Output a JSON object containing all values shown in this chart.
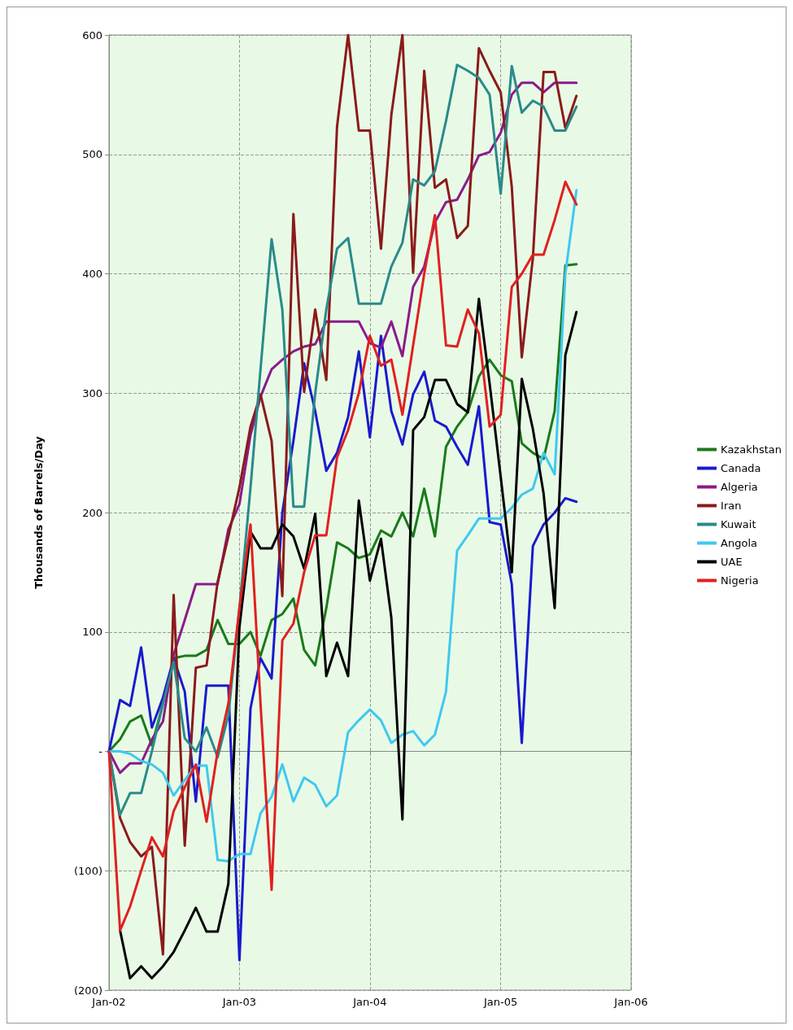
{
  "chart_data": {
    "type": "line",
    "ylabel": "Thousands of Barrels/Day",
    "x": [
      "2002-01",
      "2002-02",
      "2002-03",
      "2002-04",
      "2002-05",
      "2002-06",
      "2002-07",
      "2002-08",
      "2002-09",
      "2002-10",
      "2002-11",
      "2002-12",
      "2003-01",
      "2003-02",
      "2003-03",
      "2003-04",
      "2003-05",
      "2003-06",
      "2003-07",
      "2003-08",
      "2003-09",
      "2003-10",
      "2003-11",
      "2003-12",
      "2004-01",
      "2004-02",
      "2004-03",
      "2004-04",
      "2004-05",
      "2004-06",
      "2004-07",
      "2004-08",
      "2004-09",
      "2004-10",
      "2004-11",
      "2004-12",
      "2005-01",
      "2005-02",
      "2005-03",
      "2005-04",
      "2005-05",
      "2005-06",
      "2005-07",
      "2005-08"
    ],
    "series": [
      {
        "name": "Kazakhstan",
        "color": "#1a7a1a",
        "values": [
          0,
          10,
          25,
          30,
          5,
          40,
          78,
          80,
          80,
          85,
          110,
          90,
          90,
          100,
          80,
          110,
          115,
          128,
          85,
          72,
          120,
          175,
          170,
          162,
          165,
          185,
          180,
          200,
          180,
          220,
          180,
          255,
          272,
          284,
          314,
          328,
          315,
          310,
          258,
          250,
          245,
          285,
          407,
          408
        ]
      },
      {
        "name": "Canada",
        "color": "#1a1acc",
        "values": [
          0,
          43,
          38,
          87,
          20,
          45,
          78,
          50,
          -42,
          55,
          55,
          55,
          -175,
          36,
          78,
          61,
          200,
          260,
          325,
          285,
          235,
          250,
          280,
          335,
          263,
          348,
          285,
          257,
          299,
          318,
          277,
          272,
          255,
          240,
          289,
          192,
          190,
          140,
          7,
          172,
          190,
          200,
          212,
          209
        ]
      },
      {
        "name": "Algeria",
        "color": "#8b1a8b",
        "values": [
          0,
          -18,
          -10,
          -10,
          10,
          25,
          81,
          110,
          140,
          140,
          140,
          186,
          207,
          265,
          297,
          320,
          328,
          335,
          339,
          341,
          360,
          360,
          360,
          360,
          342,
          338,
          360,
          331,
          389,
          406,
          443,
          460,
          462,
          479,
          499,
          502,
          518,
          550,
          560,
          560,
          552,
          560,
          560,
          560
        ]
      },
      {
        "name": "Iran",
        "color": "#8b1a1a",
        "values": [
          0,
          -56,
          -76,
          -88,
          -80,
          -170,
          131,
          -79,
          70,
          72,
          142,
          180,
          221,
          272,
          299,
          260,
          130,
          450,
          301,
          370,
          311,
          523,
          600,
          520,
          520,
          421,
          533,
          600,
          401,
          570,
          472,
          479,
          430,
          440,
          589,
          570,
          552,
          473,
          330,
          413,
          569,
          569,
          522,
          549
        ]
      },
      {
        "name": "Kuwait",
        "color": "#2a8a8a",
        "values": [
          0,
          -53,
          -35,
          -35,
          0,
          40,
          75,
          11,
          0,
          20,
          -5,
          30,
          120,
          221,
          320,
          429,
          370,
          205,
          205,
          300,
          370,
          421,
          430,
          375,
          375,
          375,
          406,
          426,
          479,
          474,
          486,
          528,
          575,
          570,
          564,
          550,
          467,
          574,
          535,
          545,
          540,
          520,
          520,
          540
        ]
      },
      {
        "name": "Angola",
        "color": "#40c8f0",
        "values": [
          0,
          0,
          -2,
          -8,
          -11,
          -18,
          -37,
          -24,
          -12,
          -12,
          -91,
          -92,
          -86,
          -86,
          -52,
          -38,
          -11,
          -42,
          -22,
          -28,
          -46,
          -37,
          16,
          26,
          35,
          26,
          7,
          14,
          17,
          5,
          14,
          50,
          168,
          181,
          195,
          195,
          195,
          204,
          215,
          220,
          250,
          232,
          400,
          470
        ]
      },
      {
        "name": "UAE",
        "color": "#000000",
        "values": [
          null,
          -150,
          -190,
          -180,
          -190,
          -180,
          -168,
          -150,
          -131,
          -151,
          -151,
          -111,
          104,
          184,
          170,
          170,
          190,
          180,
          153,
          199,
          63,
          91,
          63,
          210,
          143,
          178,
          112,
          -57,
          269,
          280,
          311,
          311,
          291,
          284,
          379,
          308,
          230,
          150,
          312,
          270,
          216,
          120,
          332,
          368
        ]
      },
      {
        "name": "Nigeria",
        "color": "#e02020",
        "values": [
          0,
          -150,
          -130,
          -100,
          -72,
          -88,
          -50,
          -30,
          -11,
          -59,
          0,
          40,
          120,
          190,
          40,
          -116,
          93,
          107,
          150,
          181,
          181,
          246,
          269,
          300,
          348,
          323,
          328,
          282,
          340,
          400,
          449,
          340,
          339,
          370,
          350,
          272,
          282,
          389,
          400,
          416,
          416,
          445,
          477,
          458
        ]
      }
    ],
    "xlim": [
      "2002-01",
      "2006-01"
    ],
    "xticks": [
      {
        "value": "2002-01",
        "label": "Jan-02"
      },
      {
        "value": "2003-01",
        "label": "Jan-03"
      },
      {
        "value": "2004-01",
        "label": "Jan-04"
      },
      {
        "value": "2005-01",
        "label": "Jan-05"
      },
      {
        "value": "2006-01",
        "label": "Jan-06"
      }
    ],
    "ylim": [
      -200,
      600
    ],
    "yticks": [
      {
        "value": -200,
        "label": "(200)"
      },
      {
        "value": -100,
        "label": "(100)"
      },
      {
        "value": 0,
        "label": "-"
      },
      100,
      200,
      300,
      400,
      500,
      600
    ],
    "grid": true,
    "legend": "right",
    "marker": "none",
    "line_style": "solid"
  }
}
